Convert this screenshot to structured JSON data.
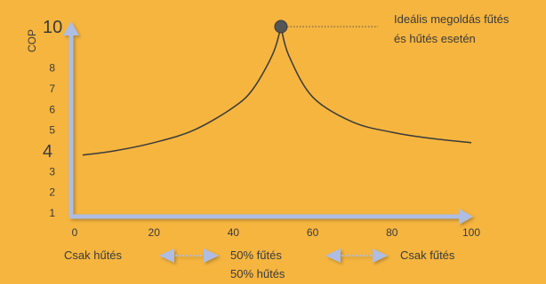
{
  "chart_data": {
    "type": "line",
    "title": "",
    "xlabel": "",
    "ylabel": "COP",
    "xlim": [
      0,
      100
    ],
    "ylim": [
      1,
      10
    ],
    "x_ticks": [
      0,
      20,
      40,
      60,
      80,
      100
    ],
    "y_ticks": [
      1,
      2,
      3,
      4,
      5,
      6,
      7,
      8,
      10
    ],
    "y_ticks_emphasized": [
      4,
      10
    ],
    "grid": false,
    "series": [
      {
        "x": [
          2,
          10,
          20,
          30,
          40,
          45,
          50,
          52,
          54,
          60,
          70,
          80,
          90,
          100
        ],
        "values": [
          3.8,
          4.0,
          4.4,
          5.0,
          6.1,
          7.0,
          8.7,
          10.0,
          8.6,
          6.6,
          5.4,
          4.9,
          4.6,
          4.4
        ]
      }
    ],
    "highlight_point": {
      "x": 52,
      "y": 10
    },
    "annotation": {
      "line1": "Ideális megoldás fűtés",
      "line2": "és hűtés esetén"
    },
    "bottom_labels": {
      "left": "Csak hűtés",
      "middle_line1": "50% fűtés",
      "middle_line2": "50% hűtés",
      "right": "Csak fűtés"
    },
    "colors": {
      "background": "#f5b53f",
      "curve": "#3a3a3a",
      "axes": "#aebde3",
      "text": "#3a3a3a",
      "dotted_arrows": "#aebde3",
      "point": "#555555"
    }
  }
}
